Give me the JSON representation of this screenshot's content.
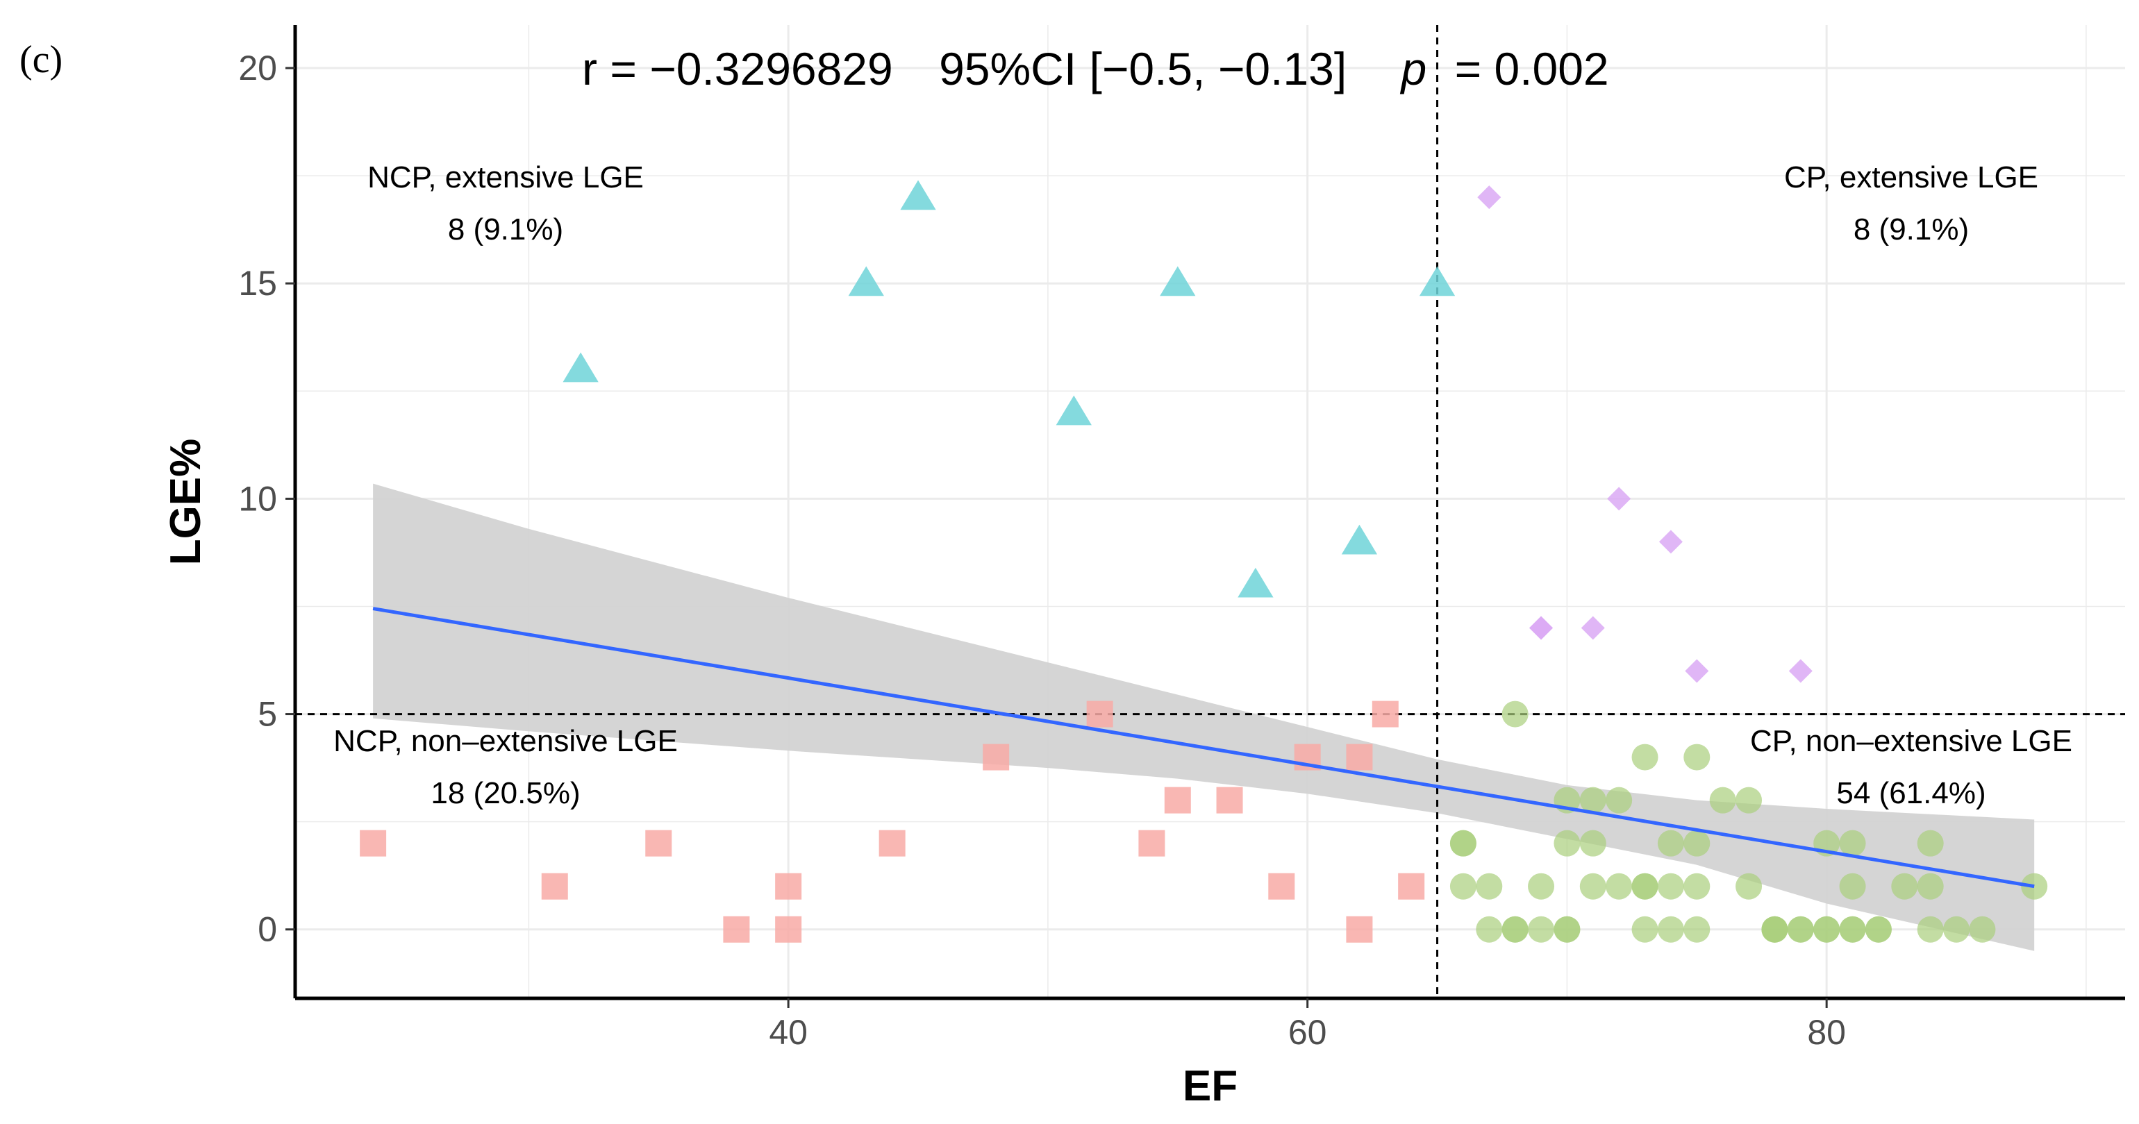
{
  "panel_label": "(c)",
  "chart_data": {
    "type": "scatter",
    "xlabel": "EF",
    "ylabel": "LGE%",
    "xlim": [
      21,
      91.5
    ],
    "ylim": [
      -1.6,
      21
    ],
    "x_ticks": [
      40,
      60,
      80
    ],
    "y_ticks": [
      0,
      5,
      10,
      15,
      20
    ],
    "grid": true,
    "thresholds": {
      "x": 65,
      "y": 5
    },
    "annotation": {
      "r_text": "r = −0.3296829",
      "ci_text": "95%CI [−0.5, −0.13]",
      "p_label": "p",
      "p_value_text": "= 0.002"
    },
    "quadrant_labels": [
      {
        "id": "ncp-extensive",
        "line1": "NCP, extensive LGE",
        "line2": "8 (9.1%)",
        "anchor": "upper-left"
      },
      {
        "id": "cp-extensive",
        "line1": "CP, extensive LGE",
        "line2": "8 (9.1%)",
        "anchor": "upper-right"
      },
      {
        "id": "ncp-nonextensive",
        "line1": "NCP, non–extensive LGE",
        "line2": "18 (20.5%)",
        "anchor": "lower-left"
      },
      {
        "id": "cp-nonextensive",
        "line1": "CP, non–extensive LGE",
        "line2": "54 (61.4%)",
        "anchor": "lower-right"
      }
    ],
    "regression": {
      "x": [
        24,
        88
      ],
      "y": [
        7.45,
        1.0
      ],
      "band": {
        "x": [
          24,
          30,
          40,
          50,
          55,
          60,
          65,
          70,
          75,
          80,
          88
        ],
        "lower": [
          4.9,
          4.6,
          4.15,
          3.75,
          3.5,
          3.15,
          2.7,
          2.1,
          1.5,
          0.6,
          -0.5
        ],
        "upper": [
          10.35,
          9.3,
          7.7,
          6.2,
          5.45,
          4.7,
          3.95,
          3.35,
          3.0,
          2.8,
          2.55
        ]
      },
      "line_color": "#3366ff",
      "band_color": "#d3d3d3"
    },
    "series": [
      {
        "group": "NCP, extensive LGE",
        "marker": "triangle",
        "color": "#6fd3d8",
        "points": [
          [
            32,
            13
          ],
          [
            43,
            15
          ],
          [
            45,
            17
          ],
          [
            51,
            12
          ],
          [
            55,
            15
          ],
          [
            58,
            8
          ],
          [
            62,
            9
          ],
          [
            65,
            15
          ]
        ]
      },
      {
        "group": "CP, extensive LGE",
        "marker": "diamond",
        "color": "#dba9f5",
        "points": [
          [
            67,
            17
          ],
          [
            69,
            7
          ],
          [
            71,
            7
          ],
          [
            72,
            10
          ],
          [
            74,
            9
          ],
          [
            75,
            6
          ],
          [
            79,
            6
          ],
          [
            69,
            7
          ]
        ]
      },
      {
        "group": "NCP, non-extensive LGE",
        "marker": "square",
        "color": "#f8aaa6",
        "points": [
          [
            24,
            2
          ],
          [
            31,
            1
          ],
          [
            35,
            2
          ],
          [
            38,
            0
          ],
          [
            40,
            1
          ],
          [
            40,
            0
          ],
          [
            44,
            2
          ],
          [
            48,
            4
          ],
          [
            52,
            5
          ],
          [
            54,
            2
          ],
          [
            55,
            3
          ],
          [
            57,
            3
          ],
          [
            59,
            1
          ],
          [
            60,
            4
          ],
          [
            62,
            4
          ],
          [
            62,
            0
          ],
          [
            63,
            5
          ],
          [
            64,
            1
          ]
        ]
      },
      {
        "group": "CP, non-extensive LGE",
        "marker": "circle",
        "color": "#a9cf7c",
        "points": [
          [
            66,
            2
          ],
          [
            66,
            2
          ],
          [
            66,
            1
          ],
          [
            67,
            0
          ],
          [
            67,
            1
          ],
          [
            68,
            5
          ],
          [
            68,
            0
          ],
          [
            68,
            0
          ],
          [
            69,
            1
          ],
          [
            69,
            0
          ],
          [
            70,
            3
          ],
          [
            70,
            2
          ],
          [
            70,
            0
          ],
          [
            70,
            0
          ],
          [
            71,
            3
          ],
          [
            71,
            2
          ],
          [
            71,
            1
          ],
          [
            72,
            3
          ],
          [
            72,
            1
          ],
          [
            73,
            4
          ],
          [
            73,
            1
          ],
          [
            73,
            0
          ],
          [
            73,
            1
          ],
          [
            74,
            2
          ],
          [
            74,
            1
          ],
          [
            74,
            0
          ],
          [
            75,
            4
          ],
          [
            75,
            2
          ],
          [
            75,
            1
          ],
          [
            75,
            0
          ],
          [
            76,
            3
          ],
          [
            77,
            3
          ],
          [
            77,
            1
          ],
          [
            78,
            0
          ],
          [
            78,
            0
          ],
          [
            79,
            0
          ],
          [
            79,
            0
          ],
          [
            80,
            2
          ],
          [
            80,
            0
          ],
          [
            81,
            2
          ],
          [
            81,
            1
          ],
          [
            81,
            0
          ],
          [
            81,
            0
          ],
          [
            82,
            0
          ],
          [
            82,
            0
          ],
          [
            83,
            1
          ],
          [
            84,
            2
          ],
          [
            84,
            1
          ],
          [
            84,
            0
          ],
          [
            85,
            0
          ],
          [
            86,
            0
          ],
          [
            88,
            1
          ],
          [
            78,
            0
          ],
          [
            80,
            0
          ]
        ]
      }
    ]
  }
}
